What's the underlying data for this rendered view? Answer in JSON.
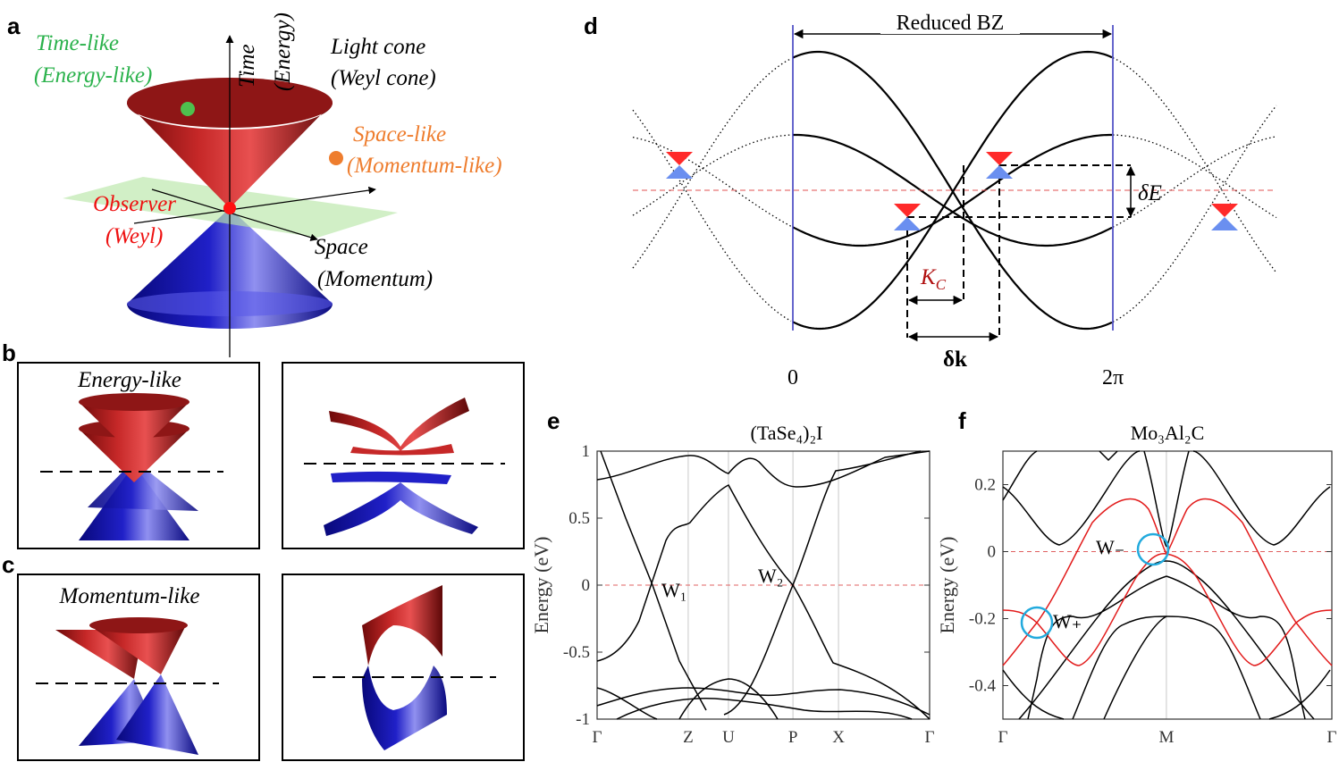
{
  "panels": {
    "a": {
      "label": "a",
      "time_like": "Time-like",
      "energy_like": "(Energy-like)",
      "time_axis": "Time",
      "energy_axis": "(Energy)",
      "light_cone": "Light cone",
      "weyl_cone": "(Weyl cone)",
      "space_like": "Space-like",
      "momentum_like": "(Momentum-like)",
      "observer": "Observer",
      "weyl": "(Weyl)",
      "space": "Space",
      "momentum": "(Momentum)"
    },
    "b": {
      "label": "b",
      "title": "Energy-like"
    },
    "c": {
      "label": "c",
      "title": "Momentum-like"
    },
    "d": {
      "label": "d",
      "reduced_bz": "Reduced BZ",
      "x_start": "0",
      "x_end": "2π",
      "delta_e": "δE",
      "delta_k": "δk",
      "k_c": {
        "main": "K",
        "sub": "C"
      }
    }
  },
  "chart_data": [
    {
      "type": "band",
      "panel_label": "e",
      "title": "(TaSe₄)₂I",
      "y_label": "Energy (eV)",
      "categories": [
        "Γ",
        "Z",
        "U",
        "P",
        "X",
        "Γ"
      ],
      "ylim": [
        -1,
        1
      ],
      "yticks": [
        -1,
        -0.5,
        0,
        0.5,
        1
      ],
      "grid": true,
      "annotations": [
        "W₁",
        "W₂"
      ]
    },
    {
      "type": "band",
      "panel_label": "f",
      "title": "Mo₃Al₂C",
      "y_label": "Energy (eV)",
      "categories": [
        "Γ",
        "M",
        "Γ"
      ],
      "ylim": [
        -0.5,
        0.3
      ],
      "yticks": [
        -0.4,
        -0.2,
        0,
        0.2
      ],
      "grid": true,
      "annotations": [
        "W₋",
        "W₊"
      ]
    }
  ]
}
